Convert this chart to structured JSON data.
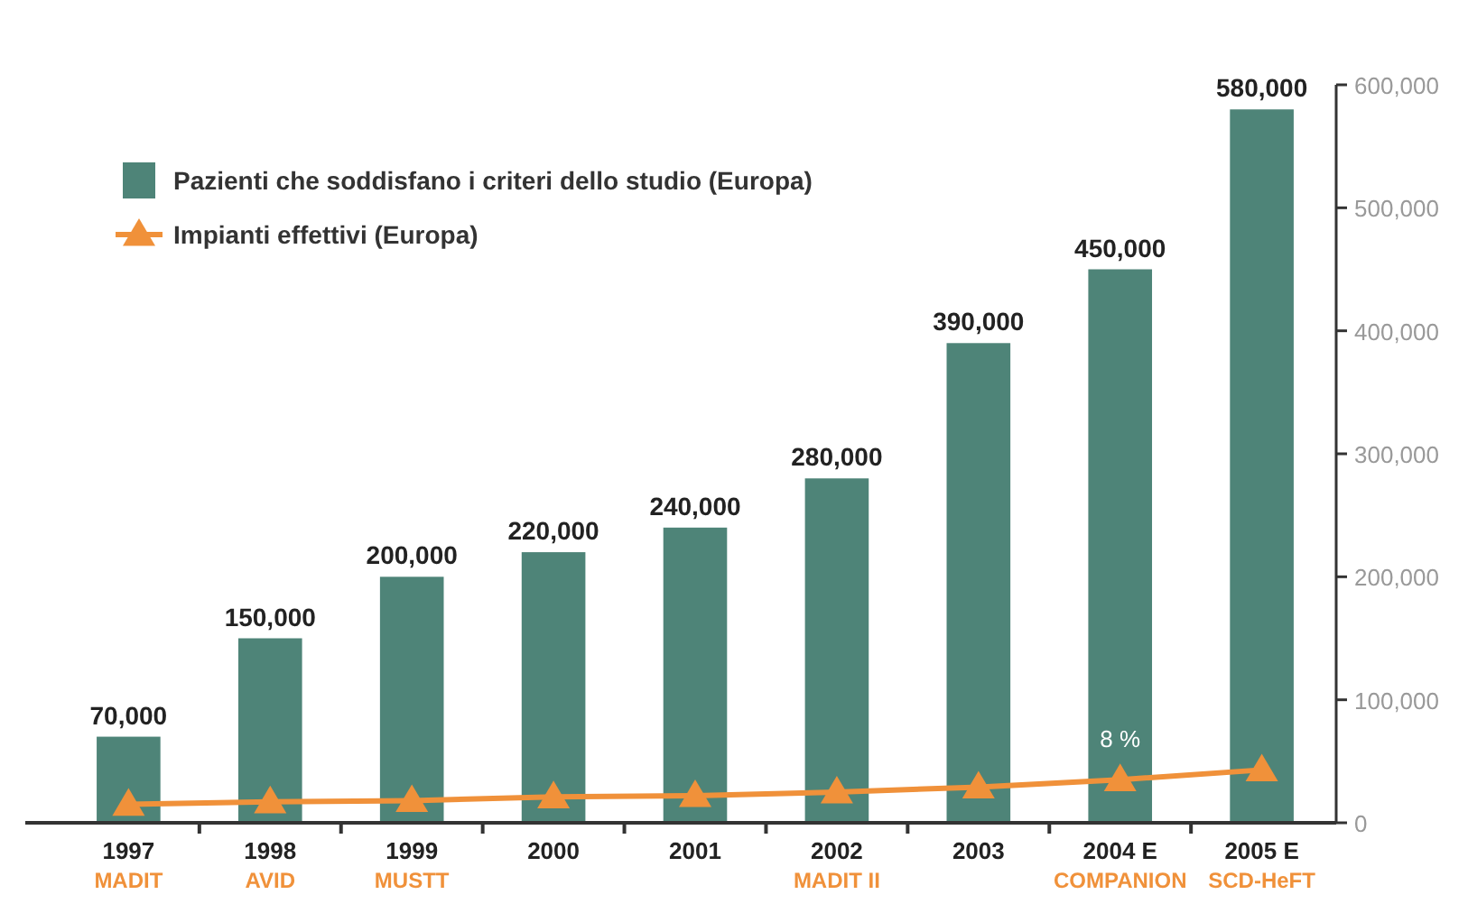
{
  "chart_data": {
    "type": "bar",
    "categories": [
      "1997\nMADIT",
      "1998\nAVID",
      "1999\nMUSTT",
      "2000",
      "2001",
      "2002\nMADIT II",
      "2003",
      "2004 E\nCOMPANION",
      "2005 E\nSCD-HeFT"
    ],
    "series": [
      {
        "name": "Pazienti che soddisfano i criteri dello studio (Europa)",
        "color": "#4e8478",
        "values": [
          70000,
          150000,
          200000,
          220000,
          240000,
          280000,
          390000,
          450000,
          580000
        ]
      },
      {
        "name": "Impianti effettivi (Europa)",
        "type": "line",
        "color": "#f0913a",
        "marker": "triangle",
        "values": [
          15000,
          17000,
          18000,
          21000,
          22000,
          25000,
          29000,
          35000,
          43000
        ]
      }
    ],
    "ylim": [
      0,
      600000
    ],
    "yticks": [
      {
        "value": 0,
        "label": "0"
      },
      {
        "value": 100000,
        "label": "100,000"
      },
      {
        "value": 200000,
        "label": "200,000"
      },
      {
        "value": 300000,
        "label": "300,000"
      },
      {
        "value": 400000,
        "label": "400,000"
      },
      {
        "value": 500000,
        "label": "500,000"
      },
      {
        "value": 600000,
        "label": "600,000"
      }
    ],
    "value_labels": [
      "70,000",
      "150,000",
      "200,000",
      "220,000",
      "240,000",
      "280,000",
      "390,000",
      "450,000",
      "580,000"
    ],
    "annotations": [
      "8 %"
    ],
    "legend": "top left",
    "grid": false
  }
}
